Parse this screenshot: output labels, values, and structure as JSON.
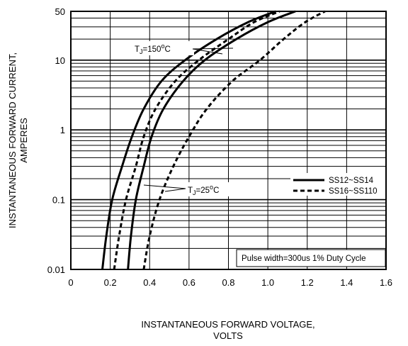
{
  "chart_data": {
    "type": "line",
    "title": "",
    "xlabel": "INSTANTANEOUS FORWARD VOLTAGE,",
    "xlabel_line2": "VOLTS",
    "ylabel": "INSTANTANEOUS FORWARD CURRENT,",
    "ylabel_line2": "AMPERES",
    "x_scale": "linear",
    "y_scale": "log",
    "xlim": [
      0,
      1.6
    ],
    "ylim": [
      0.01,
      50
    ],
    "x_ticks": [
      "0",
      "0.2",
      "0.4",
      "0.6",
      "0.8",
      "1.0",
      "1.2",
      "1.4",
      "1.6"
    ],
    "y_ticks": [
      "0.01",
      "0.1",
      "1",
      "10",
      "50"
    ],
    "grid": true,
    "legend_position": "right",
    "legend": [
      {
        "label": "SS12~SS14",
        "style": "solid"
      },
      {
        "label": "SS16~SS110",
        "style": "dashed"
      }
    ],
    "annotations": {
      "tj150_prefix": "T",
      "tj150_sub": "J",
      "tj150_value": "=150",
      "tj150_sup": "o",
      "tj150_unit": "C",
      "tj25_prefix": "T",
      "tj25_sub": "J",
      "tj25_value": "=25",
      "tj25_sup": "o",
      "tj25_unit": "C",
      "note": "Pulse width=300us 1% Duty Cycle"
    },
    "series": [
      {
        "name": "SS12~SS14",
        "condition": "TJ=150°C",
        "style": "solid",
        "points": [
          [
            0.16,
            0.01
          ],
          [
            0.18,
            0.03
          ],
          [
            0.21,
            0.1
          ],
          [
            0.26,
            0.3
          ],
          [
            0.31,
            0.8
          ],
          [
            0.37,
            2
          ],
          [
            0.46,
            5
          ],
          [
            0.58,
            10
          ],
          [
            0.74,
            20
          ],
          [
            0.9,
            35
          ],
          [
            1.04,
            50
          ]
        ]
      },
      {
        "name": "SS16~SS110",
        "condition": "TJ=150°C",
        "style": "dashed",
        "points": [
          [
            0.22,
            0.01
          ],
          [
            0.245,
            0.03
          ],
          [
            0.28,
            0.1
          ],
          [
            0.33,
            0.3
          ],
          [
            0.37,
            0.8
          ],
          [
            0.43,
            2
          ],
          [
            0.53,
            5
          ],
          [
            0.65,
            10
          ],
          [
            0.8,
            20
          ],
          [
            0.93,
            35
          ],
          [
            1.06,
            50
          ]
        ]
      },
      {
        "name": "SS12~SS14",
        "condition": "TJ=25°C",
        "style": "solid",
        "points": [
          [
            0.29,
            0.01
          ],
          [
            0.305,
            0.03
          ],
          [
            0.33,
            0.1
          ],
          [
            0.37,
            0.3
          ],
          [
            0.41,
            0.8
          ],
          [
            0.47,
            2
          ],
          [
            0.57,
            5
          ],
          [
            0.68,
            10
          ],
          [
            0.84,
            20
          ],
          [
            1.0,
            35
          ],
          [
            1.14,
            50
          ]
        ]
      },
      {
        "name": "SS16~SS110",
        "condition": "TJ=25°C",
        "style": "dashed",
        "points": [
          [
            0.37,
            0.01
          ],
          [
            0.4,
            0.03
          ],
          [
            0.45,
            0.1
          ],
          [
            0.52,
            0.3
          ],
          [
            0.6,
            0.8
          ],
          [
            0.69,
            2
          ],
          [
            0.82,
            5
          ],
          [
            0.96,
            10
          ],
          [
            1.08,
            20
          ],
          [
            1.19,
            35
          ],
          [
            1.29,
            50
          ]
        ]
      }
    ]
  }
}
